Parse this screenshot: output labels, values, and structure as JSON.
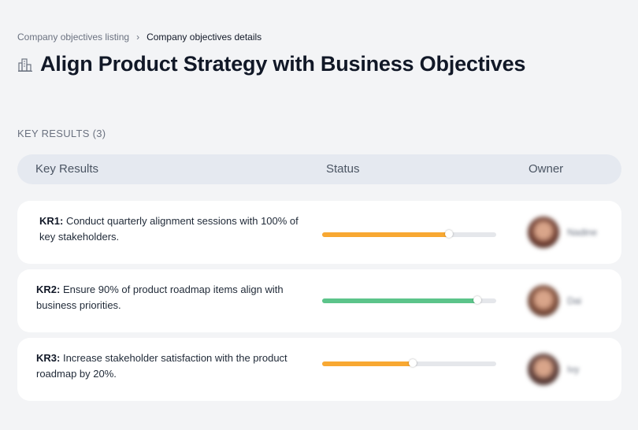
{
  "breadcrumb": {
    "parent": "Company objectives listing",
    "current": "Company objectives details"
  },
  "page": {
    "title": "Align Product Strategy with Business Objectives",
    "icon": "building-icon"
  },
  "key_results": {
    "section_label": "KEY RESULTS (3)",
    "columns": {
      "key_results": "Key Results",
      "status": "Status",
      "owner": "Owner"
    },
    "items": [
      {
        "id": "KR1:",
        "text": " Conduct quarterly alignment sessions with 100% of key stakeholders.",
        "progress": 0.73,
        "status_color": "#f8a832",
        "owner": {
          "name": "Nadine",
          "avatar_color": "#6b3a2e"
        }
      },
      {
        "id": "KR2:",
        "text": " Ensure 90% of product roadmap items align with business priorities.",
        "progress": 0.89,
        "status_color": "#5cc48a",
        "owner": {
          "name": "Dai",
          "avatar_color": "#7a4a38"
        }
      },
      {
        "id": "KR3:",
        "text": " Increase stakeholder satisfaction with the product roadmap by 20%.",
        "progress": 0.52,
        "status_color": "#f8a832",
        "owner": {
          "name": "Ivy",
          "avatar_color": "#5a3a35"
        }
      }
    ]
  }
}
